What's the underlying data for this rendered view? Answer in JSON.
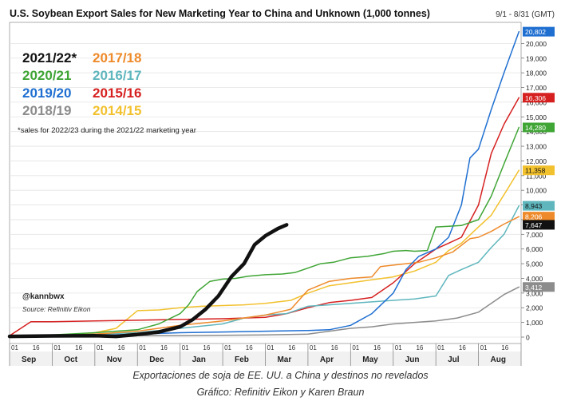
{
  "chart_data": {
    "type": "line",
    "title": "U.S. Soybean Export Sales for New Marketing Year to China and Unknown (1,000 tonnes)",
    "subtitle": "9/1 - 8/31 (GMT)",
    "note": "*sales for 2022/23 during the 2021/22 marketing year",
    "handle": "@kannbwx",
    "source": "Source: Refinitiv Eikon",
    "months": [
      "Sep",
      "Oct",
      "Nov",
      "Dec",
      "Jan",
      "Feb",
      "Mar",
      "Apr",
      "May",
      "Jun",
      "Jul",
      "Aug"
    ],
    "day_ticks": [
      "01",
      "16"
    ],
    "ylim": [
      0,
      21000
    ],
    "y_ticks": [
      0,
      1000,
      2000,
      3000,
      4000,
      5000,
      6000,
      7000,
      8000,
      9000,
      10000,
      11000,
      12000,
      13000,
      14000,
      15000,
      16000,
      17000,
      18000,
      19000,
      20000
    ],
    "y_tick_labels": [
      "0",
      "1,000",
      "2,000",
      "3,000",
      "4,000",
      "5,000",
      "6,000",
      "7,000",
      "8,000",
      "9,000",
      "10,000",
      "11,000",
      "12,000",
      "13,000",
      "14,000",
      "15,000",
      "16,000",
      "17,000",
      "18,000",
      "19,000",
      "20,000"
    ],
    "end_labels": [
      {
        "text": "20,802",
        "value": 20802,
        "color": "#1f6fd1"
      },
      {
        "text": "16,306",
        "value": 16306,
        "color": "#d62020"
      },
      {
        "text": "14,280",
        "value": 14280,
        "color": "#3fa535"
      },
      {
        "text": "11,358",
        "value": 11358,
        "color": "#f2c12e"
      },
      {
        "text": "8,943",
        "value": 8943,
        "color": "#5fb6bd"
      },
      {
        "text": "8,206",
        "value": 8206,
        "color": "#ee8a2a"
      },
      {
        "text": "7,647",
        "value": 7647,
        "color": "#111111"
      },
      {
        "text": "3,412",
        "value": 3412,
        "color": "#8c8c8c"
      }
    ],
    "series": [
      {
        "name": "2021/22*",
        "color": "#111111",
        "width": 4.5,
        "x": [
          0,
          1,
          2,
          2.5,
          3,
          3.5,
          4,
          4.3,
          4.6,
          4.9,
          5.2,
          5.5,
          5.75,
          6,
          6.3,
          6.5
        ],
        "y": [
          50,
          80,
          100,
          50,
          180,
          350,
          700,
          1200,
          1900,
          2800,
          4100,
          5000,
          6300,
          6900,
          7400,
          7647
        ]
      },
      {
        "name": "2020/21",
        "color": "#3fa535",
        "width": 1.5,
        "x": [
          0,
          1,
          2,
          3,
          3.5,
          4,
          4.2,
          4.4,
          4.7,
          5,
          5.3,
          5.6,
          6,
          6.4,
          6.7,
          7,
          7.3,
          7.6,
          8,
          8.4,
          8.8,
          9,
          9.3,
          9.5,
          9.8,
          10,
          10.3,
          10.6,
          11,
          11.3,
          11.6,
          11.95
        ],
        "y": [
          100,
          150,
          300,
          500,
          900,
          1600,
          2200,
          3100,
          3800,
          3950,
          4000,
          4150,
          4250,
          4300,
          4400,
          4700,
          5000,
          5100,
          5400,
          5500,
          5700,
          5850,
          5900,
          5850,
          5900,
          7500,
          7550,
          7600,
          8000,
          9600,
          11800,
          14280
        ]
      },
      {
        "name": "2019/20",
        "color": "#1f6fd1",
        "width": 1.5,
        "x": [
          0,
          1,
          2,
          3,
          4,
          5,
          6,
          7,
          7.5,
          8,
          8.5,
          9,
          9.3,
          9.6,
          10,
          10.3,
          10.6,
          10.8,
          11,
          11.3,
          11.6,
          11.95
        ],
        "y": [
          50,
          80,
          120,
          200,
          300,
          350,
          400,
          450,
          500,
          800,
          1600,
          3000,
          4600,
          5500,
          6000,
          6800,
          9000,
          12200,
          12800,
          15500,
          18000,
          20802
        ]
      },
      {
        "name": "2018/19",
        "color": "#8c8c8c",
        "width": 1.5,
        "x": [
          0,
          1,
          2,
          3,
          4,
          5,
          6,
          7,
          7.5,
          8,
          8.5,
          9,
          9.5,
          10,
          10.5,
          11,
          11.3,
          11.6,
          11.95
        ],
        "y": [
          50,
          60,
          80,
          100,
          100,
          120,
          150,
          200,
          400,
          600,
          700,
          900,
          1000,
          1100,
          1300,
          1700,
          2300,
          2900,
          3412
        ]
      },
      {
        "name": "2017/18",
        "color": "#ee8a2a",
        "width": 1.5,
        "x": [
          0,
          1,
          2,
          3,
          4,
          5,
          6,
          6.3,
          6.6,
          7,
          7.5,
          8,
          8.5,
          8.7,
          9,
          9.3,
          9.6,
          10,
          10.4,
          10.8,
          11,
          11.3,
          11.6,
          11.95
        ],
        "y": [
          50,
          100,
          200,
          400,
          800,
          1100,
          1500,
          1700,
          1900,
          3200,
          3800,
          4000,
          4100,
          4800,
          4900,
          5000,
          5100,
          5400,
          5800,
          6700,
          6800,
          7200,
          7700,
          8206
        ]
      },
      {
        "name": "2016/17",
        "color": "#5fb6bd",
        "width": 1.5,
        "x": [
          0,
          1,
          2,
          3,
          4,
          5,
          5.5,
          6,
          6.5,
          7,
          7.5,
          8,
          8.5,
          9,
          9.5,
          10,
          10.3,
          10.6,
          11,
          11.3,
          11.6,
          11.95
        ],
        "y": [
          50,
          100,
          200,
          300,
          600,
          900,
          1300,
          1500,
          1600,
          2100,
          2200,
          2300,
          2400,
          2500,
          2600,
          2800,
          4200,
          4600,
          5100,
          6100,
          7000,
          8943
        ]
      },
      {
        "name": "2015/16",
        "color": "#d62020",
        "width": 1.5,
        "x": [
          0,
          0.5,
          1,
          2,
          3,
          4,
          5,
          6,
          6.5,
          7,
          7.5,
          8,
          8.5,
          9,
          9.5,
          10,
          10.3,
          10.6,
          11,
          11.3,
          11.6,
          11.95
        ],
        "y": [
          100,
          1050,
          1050,
          1100,
          1150,
          1200,
          1250,
          1350,
          1600,
          2000,
          2350,
          2500,
          2700,
          3700,
          5000,
          6000,
          6400,
          6800,
          9000,
          12500,
          14500,
          16306
        ]
      },
      {
        "name": "2014/15",
        "color": "#f2c12e",
        "width": 1.5,
        "x": [
          0,
          1,
          2,
          2.5,
          3,
          3.5,
          4,
          4.5,
          5,
          5.5,
          6,
          6.3,
          6.6,
          7,
          7.5,
          8,
          8.5,
          9,
          9.5,
          10,
          10.3,
          10.6,
          11,
          11.3,
          11.6,
          11.95
        ],
        "y": [
          50,
          100,
          300,
          600,
          1800,
          1850,
          2000,
          2100,
          2150,
          2200,
          2300,
          2400,
          2500,
          3000,
          3500,
          3700,
          3900,
          4100,
          4500,
          5100,
          5900,
          6400,
          7500,
          8300,
          9700,
          11358
        ]
      }
    ],
    "legend": [
      {
        "label": "2021/22*",
        "color": "#111111"
      },
      {
        "label": "2017/18",
        "color": "#ee8a2a"
      },
      {
        "label": "2020/21",
        "color": "#3fa535"
      },
      {
        "label": "2016/17",
        "color": "#5fb6bd"
      },
      {
        "label": "2019/20",
        "color": "#1f6fd1"
      },
      {
        "label": "2015/16",
        "color": "#d62020"
      },
      {
        "label": "2018/19",
        "color": "#8c8c8c"
      },
      {
        "label": "2014/15",
        "color": "#f2c12e"
      }
    ]
  },
  "caption": {
    "line1": "Exportaciones de soja de EE. UU. a China y destinos no revelados",
    "line2": "Gráfico: Refinitiv Eikon y Karen Braun"
  }
}
